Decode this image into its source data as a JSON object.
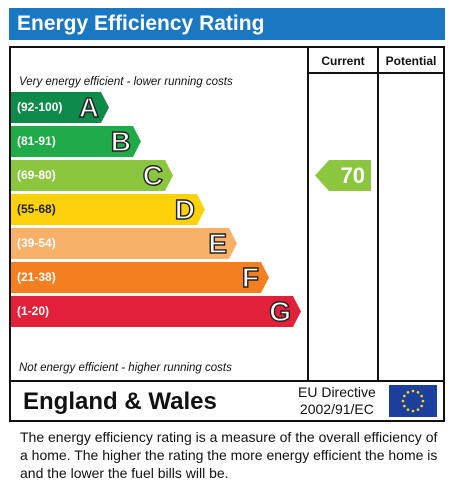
{
  "header": {
    "title": "Energy Efficiency Rating"
  },
  "columns": {
    "current": "Current",
    "potential": "Potential"
  },
  "captions": {
    "top": "Very energy efficient - lower running costs",
    "bottom": "Not energy efficient - higher running costs"
  },
  "colors": {
    "title_bg": "#1a78c2",
    "A": "#0e8a4a",
    "B": "#21aa48",
    "C": "#8cc63f",
    "D": "#fdd20a",
    "E": "#f8b169",
    "F": "#f47f20",
    "G": "#e3203a",
    "current_arrow": "#8cc63f"
  },
  "chart_data": {
    "type": "bar",
    "bands": [
      {
        "range": "(92-100)",
        "letter": "A"
      },
      {
        "range": "(81-91)",
        "letter": "B"
      },
      {
        "range": "(69-80)",
        "letter": "C"
      },
      {
        "range": "(55-68)",
        "letter": "D"
      },
      {
        "range": "(39-54)",
        "letter": "E"
      },
      {
        "range": "(21-38)",
        "letter": "F"
      },
      {
        "range": "(1-20)",
        "letter": "G"
      }
    ],
    "current": {
      "value": "70",
      "band": "C"
    },
    "potential": null
  },
  "footer": {
    "region": "England & Wales",
    "directive_line1": "EU Directive",
    "directive_line2": "2002/91/EC"
  },
  "description": "The energy efficiency rating is a measure of the overall efficiency of a home.  The higher the rating the more energy efficient the home is and the lower the fuel bills will be."
}
